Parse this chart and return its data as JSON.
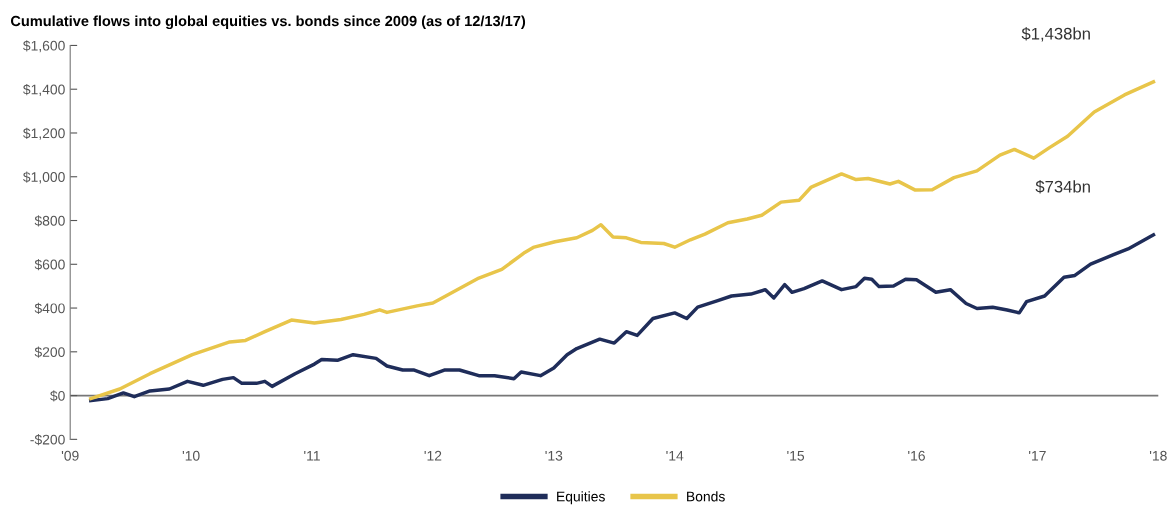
{
  "chart_data": {
    "type": "line",
    "title": "Cumulative flows into global equities vs. bonds since 2009 (as of 12/13/17)",
    "xlim": [
      2009,
      2018
    ],
    "xticks": [
      {
        "value": 2009,
        "label": "'09"
      },
      {
        "value": 2010,
        "label": "'10"
      },
      {
        "value": 2011,
        "label": "'11"
      },
      {
        "value": 2012,
        "label": "'12"
      },
      {
        "value": 2013,
        "label": "'13"
      },
      {
        "value": 2014,
        "label": "'14"
      },
      {
        "value": 2015,
        "label": "'15"
      },
      {
        "value": 2016,
        "label": "'16"
      },
      {
        "value": 2017,
        "label": "'17"
      },
      {
        "value": 2018,
        "label": "'18"
      }
    ],
    "ylim": [
      -200,
      1600
    ],
    "yticks": [
      {
        "value": -200,
        "label": "-$200"
      },
      {
        "value": 0,
        "label": "$0"
      },
      {
        "value": 200,
        "label": "$200"
      },
      {
        "value": 400,
        "label": "$400"
      },
      {
        "value": 600,
        "label": "$600"
      },
      {
        "value": 800,
        "label": "$800"
      },
      {
        "value": 1000,
        "label": "$1,000"
      },
      {
        "value": 1200,
        "label": "$1,200"
      },
      {
        "value": 1400,
        "label": "$1,400"
      },
      {
        "value": 1600,
        "label": "$1,600"
      }
    ],
    "grid": false,
    "legend": "bottom",
    "marker": "none",
    "line_style": "solid",
    "series": [
      {
        "name": "Equities",
        "color": "#1f2d5a",
        "x": [
          2009.17,
          2009.31,
          2009.44,
          2009.53,
          2009.66,
          2009.82,
          2009.97,
          2010.1,
          2010.26,
          2010.35,
          2010.42,
          2010.54,
          2010.61,
          2010.67,
          2010.86,
          2011.02,
          2011.08,
          2011.21,
          2011.34,
          2011.53,
          2011.62,
          2011.75,
          2011.84,
          2011.97,
          2012.1,
          2012.22,
          2012.38,
          2012.51,
          2012.67,
          2012.73,
          2012.89,
          2013.0,
          2013.11,
          2013.19,
          2013.38,
          2013.5,
          2013.6,
          2013.69,
          2013.82,
          2014.0,
          2014.1,
          2014.19,
          2014.35,
          2014.47,
          2014.63,
          2014.75,
          2014.82,
          2014.91,
          2014.97,
          2015.07,
          2015.22,
          2015.38,
          2015.5,
          2015.57,
          2015.63,
          2015.69,
          2015.81,
          2015.91,
          2016.0,
          2016.16,
          2016.28,
          2016.41,
          2016.5,
          2016.63,
          2016.75,
          2016.85,
          2016.91,
          2017.06,
          2017.22,
          2017.31,
          2017.44,
          2017.63,
          2017.75,
          2017.96
        ],
        "values": [
          -23,
          -14,
          12,
          -5,
          21,
          30,
          65,
          47,
          74,
          82,
          56,
          56,
          65,
          42,
          100,
          144,
          165,
          161,
          187,
          170,
          135,
          117,
          117,
          91,
          117,
          117,
          91,
          91,
          77,
          108,
          91,
          126,
          187,
          215,
          258,
          240,
          292,
          275,
          352,
          378,
          352,
          404,
          433,
          455,
          464,
          484,
          446,
          507,
          472,
          489,
          524,
          484,
          498,
          536,
          532,
          498,
          501,
          532,
          529,
          472,
          484,
          421,
          398,
          404,
          391,
          378,
          429,
          455,
          541,
          549,
          601,
          644,
          670,
          735
        ]
      },
      {
        "name": "Bonds",
        "color": "#e8c54a",
        "x": [
          2009.17,
          2009.41,
          2009.66,
          2010.01,
          2010.32,
          2010.45,
          2010.61,
          2010.83,
          2011.02,
          2011.24,
          2011.43,
          2011.56,
          2011.62,
          2011.87,
          2012.0,
          2012.19,
          2012.38,
          2012.57,
          2012.76,
          2012.83,
          2013.01,
          2013.19,
          2013.32,
          2013.39,
          2013.49,
          2013.6,
          2013.72,
          2013.91,
          2014.0,
          2014.13,
          2014.25,
          2014.44,
          2014.6,
          2014.72,
          2014.88,
          2015.03,
          2015.13,
          2015.38,
          2015.5,
          2015.6,
          2015.78,
          2015.85,
          2015.99,
          2016.13,
          2016.31,
          2016.5,
          2016.69,
          2016.81,
          2016.97,
          2017.1,
          2017.25,
          2017.47,
          2017.72,
          2017.96
        ],
        "values": [
          -14,
          30,
          100,
          187,
          245,
          252,
          292,
          345,
          332,
          348,
          371,
          392,
          380,
          410,
          423,
          480,
          537,
          577,
          654,
          677,
          703,
          721,
          755,
          781,
          725,
          721,
          700,
          695,
          678,
          712,
          738,
          790,
          807,
          824,
          884,
          893,
          953,
          1013,
          987,
          992,
          967,
          979,
          939,
          941,
          996,
          1027,
          1099,
          1125,
          1085,
          1133,
          1185,
          1296,
          1374,
          1434
        ]
      }
    ],
    "ref_lines": [
      {
        "axis": "y",
        "value": 0,
        "label": null,
        "color": "#777777"
      }
    ],
    "annotations": [
      "$1,438bn",
      "$734bn"
    ]
  }
}
